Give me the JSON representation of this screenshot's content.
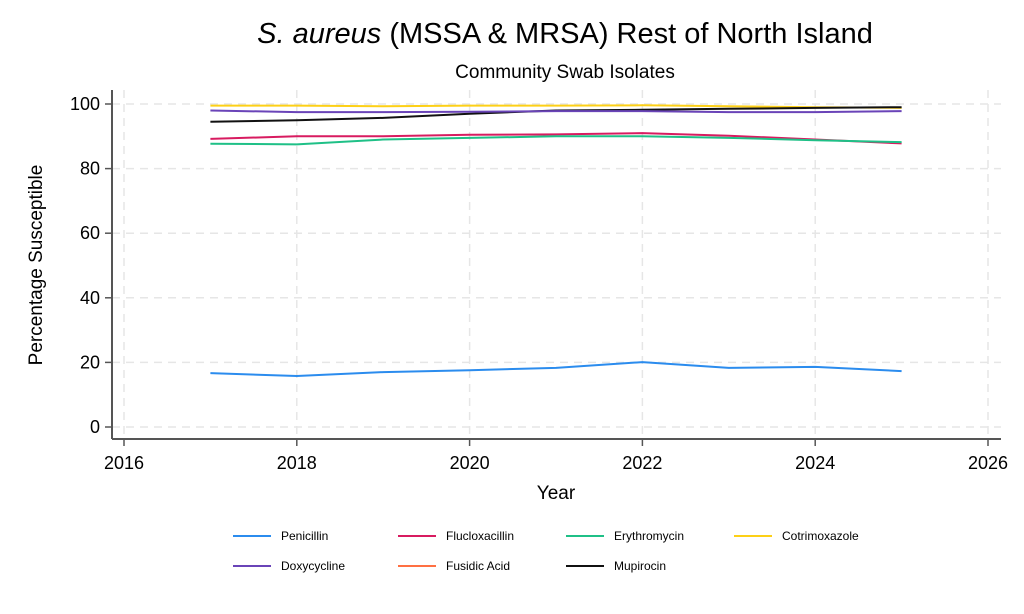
{
  "chart_data": {
    "type": "line",
    "title_italic": "S. aureus",
    "title_rest": " (MSSA & MRSA) Rest of North Island",
    "subtitle": "Community Swab Isolates",
    "xlabel": "Year",
    "ylabel": "Percentage Susceptible",
    "xlim": [
      2016,
      2026
    ],
    "ylim": [
      0,
      100
    ],
    "xticks": [
      2016,
      2018,
      2020,
      2022,
      2024,
      2026
    ],
    "yticks": [
      0,
      20,
      40,
      60,
      80,
      100
    ],
    "grid": true,
    "legend_position": "bottom",
    "x": [
      2017,
      2018,
      2019,
      2020,
      2021,
      2022,
      2023,
      2024,
      2025
    ],
    "series": [
      {
        "name": "Penicillin",
        "color": "#2b8cee",
        "values": [
          16.7,
          15.8,
          17.0,
          17.6,
          18.3,
          20.1,
          18.3,
          18.6,
          17.3
        ]
      },
      {
        "name": "Flucloxacillin",
        "color": "#d81b60",
        "values": [
          89.2,
          90.0,
          90.0,
          90.5,
          90.6,
          91.0,
          90.2,
          89.0,
          87.8
        ]
      },
      {
        "name": "Erythromycin",
        "color": "#1fc087",
        "values": [
          87.7,
          87.5,
          89.0,
          89.5,
          90.0,
          90.0,
          89.5,
          88.8,
          88.2
        ]
      },
      {
        "name": "Cotrimoxazole",
        "color": "#fdd017",
        "values": [
          99.5,
          99.5,
          99.3,
          99.5,
          99.5,
          99.6,
          99.3,
          99.0,
          98.8
        ]
      },
      {
        "name": "Doxycycline",
        "color": "#6a44b8",
        "values": [
          98.0,
          97.5,
          97.5,
          97.6,
          97.8,
          97.8,
          97.5,
          97.5,
          97.8
        ]
      },
      {
        "name": "Fusidic Acid",
        "color": "#ff7043",
        "values": []
      },
      {
        "name": "Mupirocin",
        "color": "#111111",
        "values": [
          94.5,
          95.0,
          95.7,
          97.0,
          98.0,
          98.2,
          98.5,
          98.8,
          99.0
        ]
      }
    ]
  }
}
